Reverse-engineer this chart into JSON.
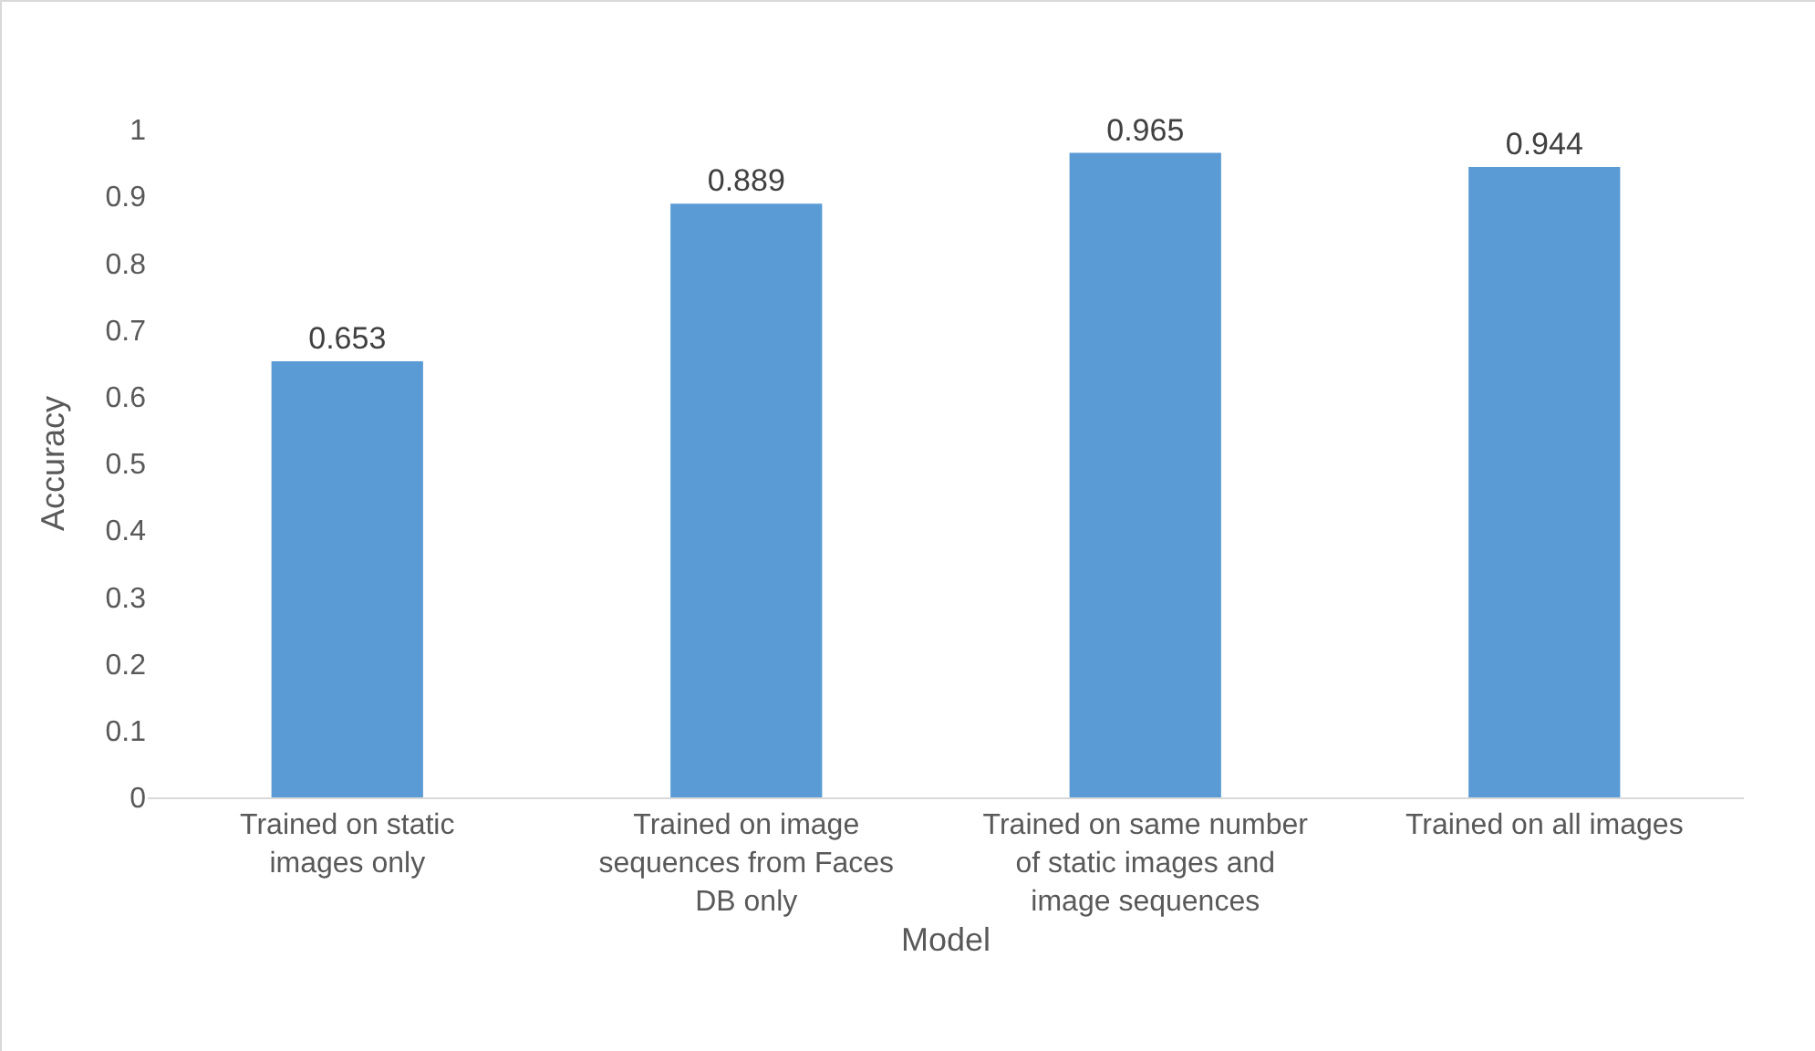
{
  "chart_data": {
    "type": "bar",
    "xlabel": "Model",
    "ylabel": "Accuracy",
    "categories": [
      "Trained on static images only",
      "Trained on image sequences from Faces DB only",
      "Trained on same number of static images and image sequences",
      "Trained on all images"
    ],
    "values": [
      0.653,
      0.889,
      0.965,
      0.944
    ],
    "color": "#5b9bd5",
    "ylim": [
      0,
      1
    ],
    "yticks": [
      0,
      0.1,
      0.2,
      0.3,
      0.4,
      0.5,
      0.6,
      0.7,
      0.8,
      0.9,
      1
    ],
    "grid": false,
    "data_labels": true
  }
}
